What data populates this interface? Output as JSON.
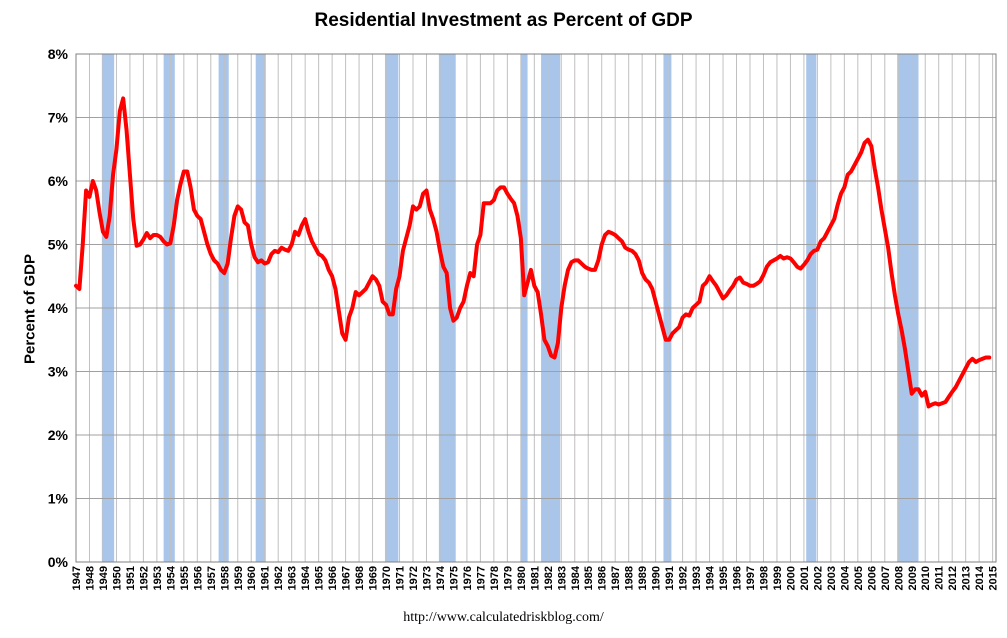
{
  "chart_data": {
    "type": "line",
    "title": "Residential Investment as Percent of GDP",
    "ylabel": "Percent of GDP",
    "xlabel": "",
    "source": "http://www.calculatedriskblog.com/",
    "ylim": [
      0,
      8
    ],
    "yticks": [
      "0%",
      "1%",
      "2%",
      "3%",
      "4%",
      "5%",
      "6%",
      "7%",
      "8%"
    ],
    "xlim": [
      1947,
      2015.25
    ],
    "xticks": [
      "1947",
      "1948",
      "1949",
      "1950",
      "1951",
      "1952",
      "1953",
      "1954",
      "1955",
      "1956",
      "1957",
      "1958",
      "1959",
      "1960",
      "1961",
      "1962",
      "1963",
      "1964",
      "1965",
      "1966",
      "1967",
      "1968",
      "1969",
      "1970",
      "1971",
      "1972",
      "1973",
      "1974",
      "1975",
      "1976",
      "1977",
      "1978",
      "1979",
      "1980",
      "1981",
      "1982",
      "1983",
      "1984",
      "1985",
      "1986",
      "1987",
      "1988",
      "1989",
      "1990",
      "1991",
      "1992",
      "1993",
      "1994",
      "1995",
      "1996",
      "1997",
      "1998",
      "1999",
      "2000",
      "2001",
      "2002",
      "2003",
      "2004",
      "2005",
      "2006",
      "2007",
      "2008",
      "2009",
      "2010",
      "2011",
      "2012",
      "2013",
      "2014",
      "2015"
    ],
    "grid": true,
    "series": [
      {
        "color": "#ff0000",
        "points": [
          [
            1947.0,
            4.35
          ],
          [
            1947.25,
            4.3
          ],
          [
            1947.5,
            5.0
          ],
          [
            1947.75,
            5.85
          ],
          [
            1948.0,
            5.75
          ],
          [
            1948.25,
            6.0
          ],
          [
            1948.5,
            5.85
          ],
          [
            1948.75,
            5.5
          ],
          [
            1949.0,
            5.2
          ],
          [
            1949.25,
            5.12
          ],
          [
            1949.5,
            5.45
          ],
          [
            1949.75,
            6.1
          ],
          [
            1950.0,
            6.5
          ],
          [
            1950.25,
            7.1
          ],
          [
            1950.5,
            7.3
          ],
          [
            1950.75,
            6.8
          ],
          [
            1951.0,
            6.1
          ],
          [
            1951.25,
            5.4
          ],
          [
            1951.5,
            4.98
          ],
          [
            1951.75,
            5.0
          ],
          [
            1952.0,
            5.08
          ],
          [
            1952.25,
            5.18
          ],
          [
            1952.5,
            5.1
          ],
          [
            1952.75,
            5.15
          ],
          [
            1953.0,
            5.15
          ],
          [
            1953.25,
            5.12
          ],
          [
            1953.5,
            5.05
          ],
          [
            1953.75,
            5.0
          ],
          [
            1954.0,
            5.02
          ],
          [
            1954.25,
            5.3
          ],
          [
            1954.5,
            5.7
          ],
          [
            1954.75,
            5.95
          ],
          [
            1955.0,
            6.15
          ],
          [
            1955.25,
            6.15
          ],
          [
            1955.5,
            5.9
          ],
          [
            1955.75,
            5.55
          ],
          [
            1956.0,
            5.45
          ],
          [
            1956.25,
            5.4
          ],
          [
            1956.5,
            5.2
          ],
          [
            1956.75,
            5.0
          ],
          [
            1957.0,
            4.85
          ],
          [
            1957.25,
            4.75
          ],
          [
            1957.5,
            4.7
          ],
          [
            1957.75,
            4.6
          ],
          [
            1958.0,
            4.55
          ],
          [
            1958.25,
            4.7
          ],
          [
            1958.5,
            5.1
          ],
          [
            1958.75,
            5.45
          ],
          [
            1959.0,
            5.6
          ],
          [
            1959.25,
            5.55
          ],
          [
            1959.5,
            5.35
          ],
          [
            1959.75,
            5.3
          ],
          [
            1960.0,
            5.0
          ],
          [
            1960.25,
            4.8
          ],
          [
            1960.5,
            4.72
          ],
          [
            1960.75,
            4.75
          ],
          [
            1961.0,
            4.7
          ],
          [
            1961.25,
            4.72
          ],
          [
            1961.5,
            4.85
          ],
          [
            1961.75,
            4.9
          ],
          [
            1962.0,
            4.88
          ],
          [
            1962.25,
            4.95
          ],
          [
            1962.5,
            4.92
          ],
          [
            1962.75,
            4.9
          ],
          [
            1963.0,
            5.0
          ],
          [
            1963.25,
            5.2
          ],
          [
            1963.5,
            5.15
          ],
          [
            1963.75,
            5.3
          ],
          [
            1964.0,
            5.4
          ],
          [
            1964.25,
            5.2
          ],
          [
            1964.5,
            5.05
          ],
          [
            1964.75,
            4.95
          ],
          [
            1965.0,
            4.85
          ],
          [
            1965.25,
            4.82
          ],
          [
            1965.5,
            4.75
          ],
          [
            1965.75,
            4.6
          ],
          [
            1966.0,
            4.5
          ],
          [
            1966.25,
            4.3
          ],
          [
            1966.5,
            3.95
          ],
          [
            1966.75,
            3.6
          ],
          [
            1967.0,
            3.5
          ],
          [
            1967.25,
            3.85
          ],
          [
            1967.5,
            4.0
          ],
          [
            1967.75,
            4.25
          ],
          [
            1968.0,
            4.2
          ],
          [
            1968.25,
            4.25
          ],
          [
            1968.5,
            4.3
          ],
          [
            1968.75,
            4.4
          ],
          [
            1969.0,
            4.5
          ],
          [
            1969.25,
            4.45
          ],
          [
            1969.5,
            4.35
          ],
          [
            1969.75,
            4.1
          ],
          [
            1970.0,
            4.05
          ],
          [
            1970.25,
            3.9
          ],
          [
            1970.5,
            3.9
          ],
          [
            1970.75,
            4.3
          ],
          [
            1971.0,
            4.5
          ],
          [
            1971.25,
            4.9
          ],
          [
            1971.5,
            5.1
          ],
          [
            1971.75,
            5.3
          ],
          [
            1972.0,
            5.6
          ],
          [
            1972.25,
            5.55
          ],
          [
            1972.5,
            5.6
          ],
          [
            1972.75,
            5.8
          ],
          [
            1973.0,
            5.85
          ],
          [
            1973.25,
            5.55
          ],
          [
            1973.5,
            5.4
          ],
          [
            1973.75,
            5.2
          ],
          [
            1974.0,
            4.9
          ],
          [
            1974.25,
            4.65
          ],
          [
            1974.5,
            4.55
          ],
          [
            1974.75,
            4.0
          ],
          [
            1975.0,
            3.8
          ],
          [
            1975.25,
            3.85
          ],
          [
            1975.5,
            4.0
          ],
          [
            1975.75,
            4.1
          ],
          [
            1976.0,
            4.35
          ],
          [
            1976.25,
            4.55
          ],
          [
            1976.5,
            4.5
          ],
          [
            1976.75,
            5.0
          ],
          [
            1977.0,
            5.15
          ],
          [
            1977.25,
            5.65
          ],
          [
            1977.5,
            5.65
          ],
          [
            1977.75,
            5.65
          ],
          [
            1978.0,
            5.7
          ],
          [
            1978.25,
            5.85
          ],
          [
            1978.5,
            5.9
          ],
          [
            1978.75,
            5.9
          ],
          [
            1979.0,
            5.8
          ],
          [
            1979.25,
            5.72
          ],
          [
            1979.5,
            5.65
          ],
          [
            1979.75,
            5.45
          ],
          [
            1980.0,
            5.1
          ],
          [
            1980.25,
            4.2
          ],
          [
            1980.5,
            4.4
          ],
          [
            1980.75,
            4.6
          ],
          [
            1981.0,
            4.35
          ],
          [
            1981.25,
            4.25
          ],
          [
            1981.5,
            3.9
          ],
          [
            1981.75,
            3.5
          ],
          [
            1982.0,
            3.4
          ],
          [
            1982.25,
            3.25
          ],
          [
            1982.5,
            3.22
          ],
          [
            1982.75,
            3.45
          ],
          [
            1983.0,
            4.0
          ],
          [
            1983.25,
            4.35
          ],
          [
            1983.5,
            4.6
          ],
          [
            1983.75,
            4.72
          ],
          [
            1984.0,
            4.75
          ],
          [
            1984.25,
            4.75
          ],
          [
            1984.5,
            4.7
          ],
          [
            1984.75,
            4.65
          ],
          [
            1985.0,
            4.62
          ],
          [
            1985.25,
            4.6
          ],
          [
            1985.5,
            4.6
          ],
          [
            1985.75,
            4.75
          ],
          [
            1986.0,
            5.0
          ],
          [
            1986.25,
            5.15
          ],
          [
            1986.5,
            5.2
          ],
          [
            1986.75,
            5.18
          ],
          [
            1987.0,
            5.15
          ],
          [
            1987.25,
            5.1
          ],
          [
            1987.5,
            5.05
          ],
          [
            1987.75,
            4.95
          ],
          [
            1988.0,
            4.92
          ],
          [
            1988.25,
            4.9
          ],
          [
            1988.5,
            4.85
          ],
          [
            1988.75,
            4.75
          ],
          [
            1989.0,
            4.55
          ],
          [
            1989.25,
            4.45
          ],
          [
            1989.5,
            4.4
          ],
          [
            1989.75,
            4.3
          ],
          [
            1990.0,
            4.1
          ],
          [
            1990.25,
            3.9
          ],
          [
            1990.5,
            3.7
          ],
          [
            1990.75,
            3.5
          ],
          [
            1991.0,
            3.5
          ],
          [
            1991.25,
            3.6
          ],
          [
            1991.5,
            3.65
          ],
          [
            1991.75,
            3.7
          ],
          [
            1992.0,
            3.85
          ],
          [
            1992.25,
            3.9
          ],
          [
            1992.5,
            3.88
          ],
          [
            1992.75,
            4.0
          ],
          [
            1993.0,
            4.05
          ],
          [
            1993.25,
            4.1
          ],
          [
            1993.5,
            4.35
          ],
          [
            1993.75,
            4.4
          ],
          [
            1994.0,
            4.5
          ],
          [
            1994.25,
            4.42
          ],
          [
            1994.5,
            4.35
          ],
          [
            1994.75,
            4.25
          ],
          [
            1995.0,
            4.15
          ],
          [
            1995.25,
            4.2
          ],
          [
            1995.5,
            4.28
          ],
          [
            1995.75,
            4.35
          ],
          [
            1996.0,
            4.45
          ],
          [
            1996.25,
            4.48
          ],
          [
            1996.5,
            4.4
          ],
          [
            1996.75,
            4.38
          ],
          [
            1997.0,
            4.35
          ],
          [
            1997.25,
            4.35
          ],
          [
            1997.5,
            4.38
          ],
          [
            1997.75,
            4.42
          ],
          [
            1998.0,
            4.52
          ],
          [
            1998.25,
            4.65
          ],
          [
            1998.5,
            4.72
          ],
          [
            1998.75,
            4.75
          ],
          [
            1999.0,
            4.78
          ],
          [
            1999.25,
            4.82
          ],
          [
            1999.5,
            4.78
          ],
          [
            1999.75,
            4.8
          ],
          [
            2000.0,
            4.78
          ],
          [
            2000.25,
            4.72
          ],
          [
            2000.5,
            4.65
          ],
          [
            2000.75,
            4.62
          ],
          [
            2001.0,
            4.68
          ],
          [
            2001.25,
            4.75
          ],
          [
            2001.5,
            4.85
          ],
          [
            2001.75,
            4.9
          ],
          [
            2002.0,
            4.92
          ],
          [
            2002.25,
            5.05
          ],
          [
            2002.5,
            5.1
          ],
          [
            2002.75,
            5.2
          ],
          [
            2003.0,
            5.3
          ],
          [
            2003.25,
            5.4
          ],
          [
            2003.5,
            5.62
          ],
          [
            2003.75,
            5.8
          ],
          [
            2004.0,
            5.9
          ],
          [
            2004.25,
            6.1
          ],
          [
            2004.5,
            6.15
          ],
          [
            2004.75,
            6.25
          ],
          [
            2005.0,
            6.35
          ],
          [
            2005.25,
            6.45
          ],
          [
            2005.5,
            6.6
          ],
          [
            2005.75,
            6.65
          ],
          [
            2006.0,
            6.55
          ],
          [
            2006.25,
            6.2
          ],
          [
            2006.5,
            5.9
          ],
          [
            2006.75,
            5.55
          ],
          [
            2007.0,
            5.25
          ],
          [
            2007.25,
            4.95
          ],
          [
            2007.5,
            4.55
          ],
          [
            2007.75,
            4.2
          ],
          [
            2008.0,
            3.9
          ],
          [
            2008.25,
            3.65
          ],
          [
            2008.5,
            3.35
          ],
          [
            2008.75,
            3.0
          ],
          [
            2009.0,
            2.65
          ],
          [
            2009.25,
            2.72
          ],
          [
            2009.5,
            2.72
          ],
          [
            2009.75,
            2.62
          ],
          [
            2010.0,
            2.68
          ],
          [
            2010.25,
            2.45
          ],
          [
            2010.5,
            2.48
          ],
          [
            2010.75,
            2.5
          ],
          [
            2011.0,
            2.48
          ],
          [
            2011.25,
            2.5
          ],
          [
            2011.5,
            2.52
          ],
          [
            2011.75,
            2.6
          ],
          [
            2012.0,
            2.68
          ],
          [
            2012.25,
            2.75
          ],
          [
            2012.5,
            2.85
          ],
          [
            2012.75,
            2.95
          ],
          [
            2013.0,
            3.05
          ],
          [
            2013.25,
            3.15
          ],
          [
            2013.5,
            3.2
          ],
          [
            2013.75,
            3.15
          ],
          [
            2014.0,
            3.18
          ],
          [
            2014.25,
            3.2
          ],
          [
            2014.5,
            3.22
          ],
          [
            2014.75,
            3.22
          ]
        ]
      }
    ],
    "recessions": [
      [
        1948.92,
        1949.83
      ],
      [
        1953.5,
        1954.33
      ],
      [
        1957.58,
        1958.33
      ],
      [
        1960.33,
        1961.08
      ],
      [
        1969.92,
        1970.92
      ],
      [
        1973.92,
        1975.17
      ],
      [
        1980.0,
        1980.5
      ],
      [
        1981.5,
        1982.92
      ],
      [
        1990.58,
        1991.17
      ],
      [
        2001.17,
        2001.92
      ],
      [
        2007.92,
        2009.5
      ]
    ],
    "recession_color": "#a9c6ea",
    "line_color": "#ff0000",
    "grid_color": "#c0c0c0"
  }
}
